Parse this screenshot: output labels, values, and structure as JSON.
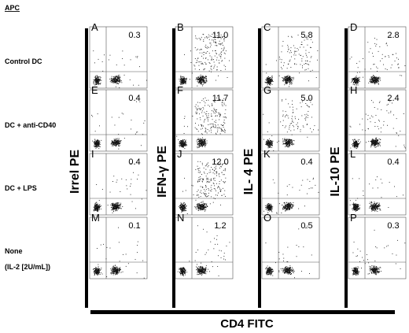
{
  "header": {
    "apc_label": "APC"
  },
  "rows": [
    {
      "label_lines": [
        "Control DC"
      ]
    },
    {
      "label_lines": [
        "DC + anti-CD40"
      ]
    },
    {
      "label_lines": [
        "DC + LPS"
      ]
    },
    {
      "label_lines": [
        "None",
        "(IL-2 [2U/mL])"
      ]
    }
  ],
  "columns": [
    {
      "y_axis_label": "Irrel  PE"
    },
    {
      "y_axis_label": "IFN-γ PE"
    },
    {
      "y_axis_label": "IL- 4 PE"
    },
    {
      "y_axis_label": "IL-10 PE"
    }
  ],
  "x_axis_label": "CD4 FITC",
  "chart_data": {
    "type": "scatter",
    "description_kind": "flow cytometry dot plots (quadrant grid)",
    "x_axis": "CD4 FITC",
    "y_axes": [
      "Irrel  PE",
      "IFN-γ PE",
      "IL- 4 PE",
      "IL-10 PE"
    ],
    "row_conditions": [
      "Control DC",
      "DC + anti-CD40",
      "DC + LPS",
      "None (IL-2 [2U/mL])"
    ],
    "panels": [
      [
        {
          "letter": "A",
          "percent": "0.3"
        },
        {
          "letter": "B",
          "percent": "11.0"
        },
        {
          "letter": "C",
          "percent": "5.8"
        },
        {
          "letter": "D",
          "percent": "2.8"
        }
      ],
      [
        {
          "letter": "E",
          "percent": "0.4"
        },
        {
          "letter": "F",
          "percent": "11.7"
        },
        {
          "letter": "G",
          "percent": "5.0"
        },
        {
          "letter": "H",
          "percent": "2.4"
        }
      ],
      [
        {
          "letter": "I",
          "percent": "0.4"
        },
        {
          "letter": "J",
          "percent": "12.0"
        },
        {
          "letter": "K",
          "percent": "0.4"
        },
        {
          "letter": "L",
          "percent": "0.4"
        }
      ],
      [
        {
          "letter": "M",
          "percent": "0.1"
        },
        {
          "letter": "N",
          "percent": "1.2"
        },
        {
          "letter": "O",
          "percent": "0.5"
        },
        {
          "letter": "P",
          "percent": "0.3"
        }
      ]
    ]
  }
}
